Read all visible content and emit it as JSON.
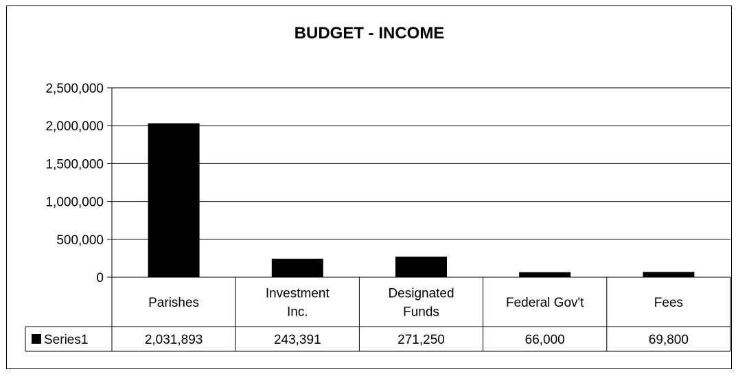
{
  "chart_data": {
    "type": "bar",
    "title": "BUDGET - INCOME",
    "categories": [
      [
        "Parishes"
      ],
      [
        "Investment",
        "Inc."
      ],
      [
        "Designated",
        "Funds"
      ],
      [
        "Federal Gov't"
      ],
      [
        "Fees"
      ]
    ],
    "series": [
      {
        "name": "Series1",
        "color": "#000000",
        "values": [
          2031893,
          243391,
          271250,
          66000,
          69800
        ],
        "labels": [
          "2,031,893",
          "243,391",
          "271,250",
          "66,000",
          "69,800"
        ]
      }
    ],
    "ylim": [
      0,
      2500000
    ],
    "yticks": [
      0,
      500000,
      1000000,
      1500000,
      2000000,
      2500000
    ],
    "ytick_labels": [
      "0",
      "500,000",
      "1,000,000",
      "1,500,000",
      "2,000,000",
      "2,500,000"
    ],
    "grid": true,
    "legend": "data-table",
    "xlabel": "",
    "ylabel": ""
  }
}
